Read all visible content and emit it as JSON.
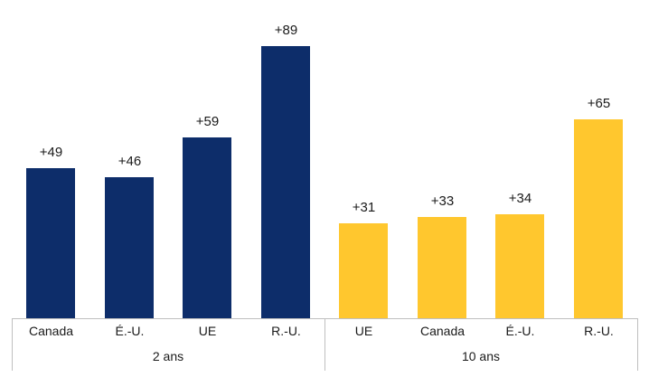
{
  "chart_data": {
    "type": "bar",
    "grid": false,
    "legend": false,
    "value_axis_visible": false,
    "ylim": [
      0,
      100
    ],
    "axis_line_color": "#bfbfbf",
    "groups": [
      {
        "label": "2 ans",
        "bar_color": "#0d2d6a",
        "categories": [
          "Canada",
          "É.-U.",
          "UE",
          "R.-U."
        ],
        "values": [
          49,
          46,
          59,
          89
        ],
        "data_labels": [
          "+49",
          "+46",
          "+59",
          "+89"
        ]
      },
      {
        "label": "10 ans",
        "bar_color": "#ffc72e",
        "categories": [
          "UE",
          "Canada",
          "É.-U.",
          "R.-U."
        ],
        "values": [
          31,
          33,
          34,
          65
        ],
        "data_labels": [
          "+31",
          "+33",
          "+34",
          "+65"
        ]
      }
    ]
  }
}
